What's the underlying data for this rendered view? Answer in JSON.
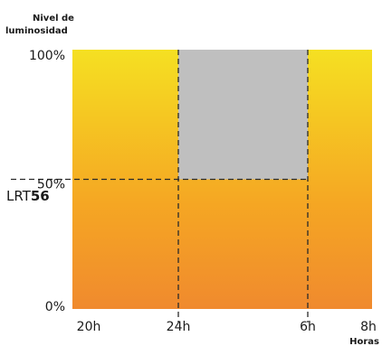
{
  "chart_data": {
    "type": "area",
    "ylabel_line1": "Nivel de",
    "ylabel_line2": "luminosidad",
    "xlabel": "Horas",
    "x_ticks": [
      "20h",
      "24h",
      "6h",
      "8h"
    ],
    "y_ticks": [
      "100%",
      "50%",
      "0%"
    ],
    "lrt_label": {
      "prefix": "LRT",
      "value": "56"
    },
    "ylim": [
      0,
      100
    ],
    "threshold_level": 50,
    "shaded_region": {
      "x_start": "24h",
      "x_end": "6h",
      "y_from": 50,
      "y_to": 100,
      "color": "#bfbfbf"
    },
    "background_gradient": [
      "#f5e022",
      "#f5a623",
      "#f08a2e"
    ],
    "grid": false
  }
}
